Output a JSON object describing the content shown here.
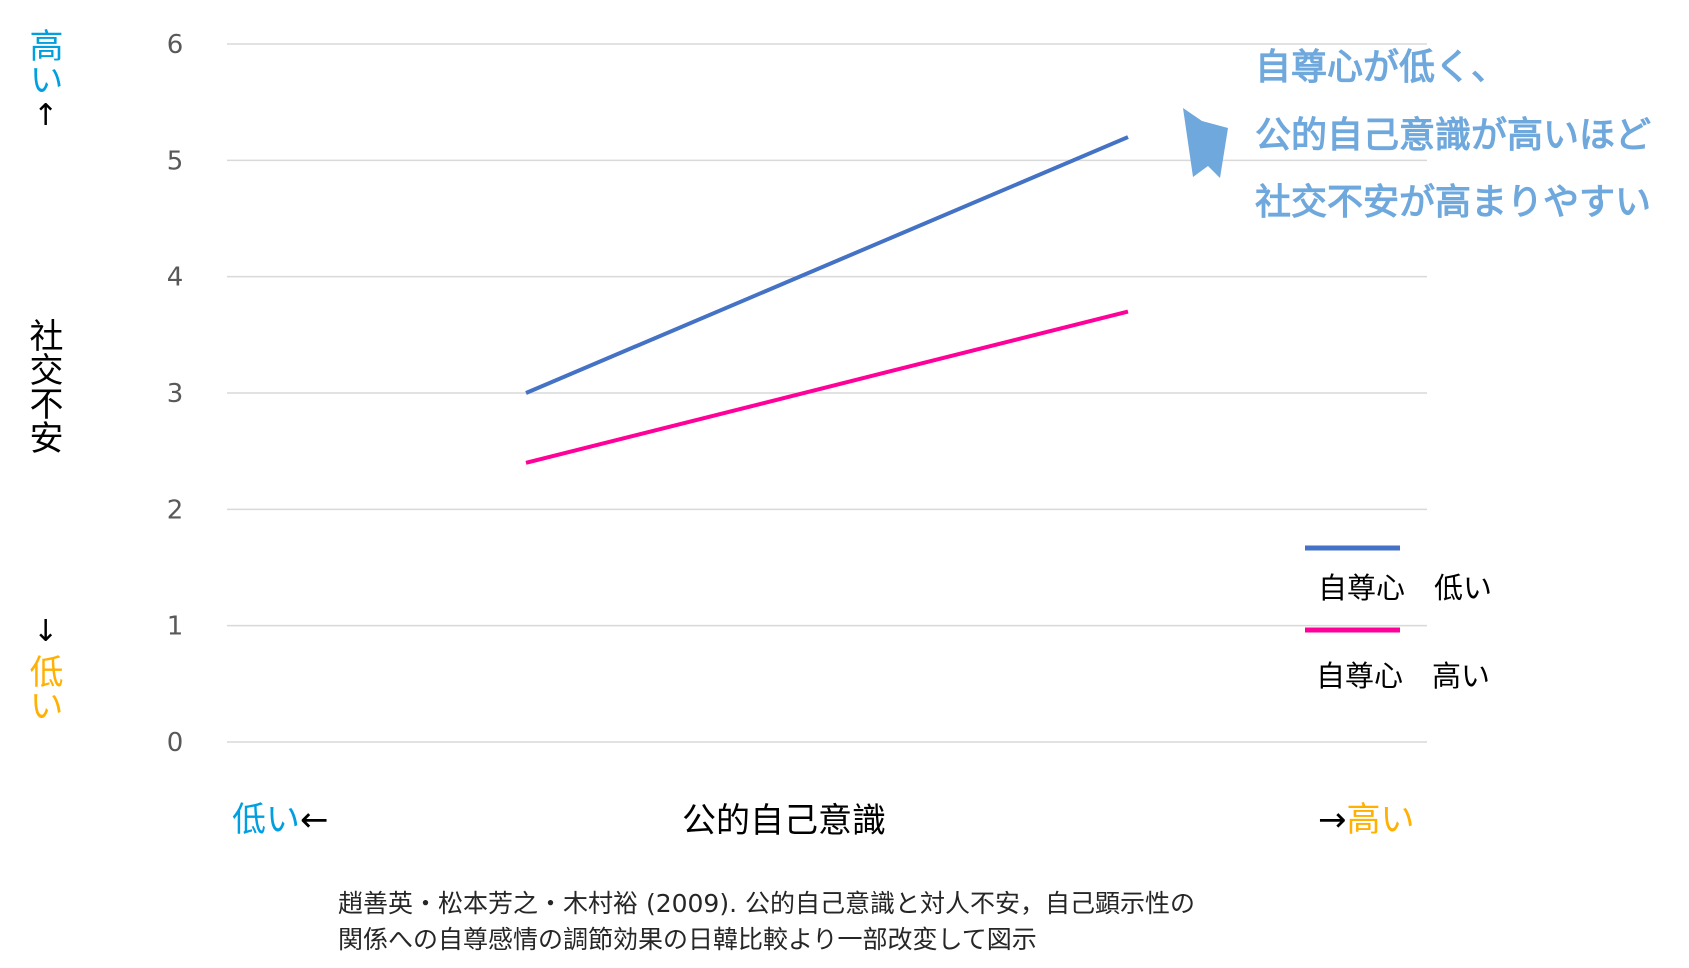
{
  "chart_data": {
    "type": "line",
    "categories": [
      "低い",
      "高い"
    ],
    "series": [
      {
        "name": "自尊心　低い",
        "values": [
          3.0,
          5.2
        ],
        "color": "#4472c4"
      },
      {
        "name": "自尊心　高い",
        "values": [
          2.4,
          3.7
        ],
        "color": "#ff0099"
      }
    ],
    "xlabel": "公的自己意識",
    "ylabel": "社交不安",
    "ylim": [
      0,
      6
    ],
    "yticks": [
      "0",
      "1",
      "2",
      "3",
      "4",
      "5",
      "6"
    ],
    "grid": true,
    "legend": "right"
  },
  "axis_labels": {
    "y_high": "高い",
    "y_high_arrow": "↑",
    "y_low_arrow": "↓",
    "y_low": "低い",
    "x_low": "低い",
    "x_low_arrow": "←",
    "x_high_arrow": "→",
    "x_high": "高い"
  },
  "colors": {
    "high": "#00a0e0",
    "low": "#ffb000",
    "annotation": "#6fa8dc"
  },
  "annotation": {
    "lines": [
      "自尊心が低く、",
      "公的自己意識が高いほど",
      "社交不安が高まりやすい"
    ]
  },
  "citation": {
    "line1": "趙善英・松本芳之・木村裕 (2009). 公的自己意識と対人不安，自己顕示性の",
    "line2": "関係への自尊感情の調節効果の日韓比較より一部改変して図示"
  }
}
